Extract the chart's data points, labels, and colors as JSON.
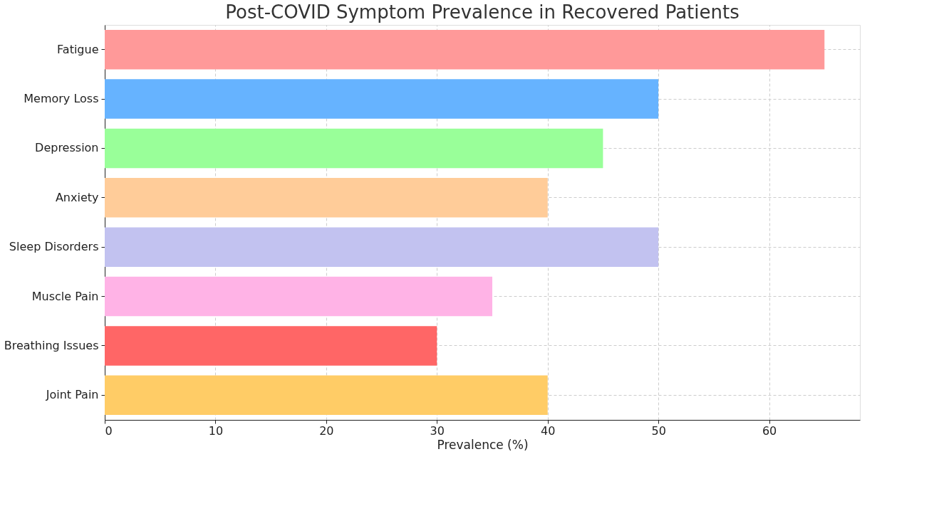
{
  "chart_data": {
    "type": "bar",
    "orientation": "horizontal",
    "title": "Post-COVID Symptom Prevalence in Recovered Patients",
    "xlabel": "Prevalence (%)",
    "categories": [
      "Fatigue",
      "Memory Loss",
      "Depression",
      "Anxiety",
      "Sleep Disorders",
      "Muscle Pain",
      "Breathing Issues",
      "Joint Pain"
    ],
    "values": [
      65,
      50,
      45,
      40,
      50,
      35,
      30,
      40
    ],
    "colors": [
      "#ff9999",
      "#66b3ff",
      "#99ff99",
      "#ffcc99",
      "#c2c2f0",
      "#ffb3e6",
      "#ff6666",
      "#ffcc66"
    ],
    "xlim": [
      0,
      68.2
    ],
    "xticks": [
      0,
      10,
      20,
      30,
      40,
      50,
      60
    ],
    "grid": true,
    "legend": false
  }
}
